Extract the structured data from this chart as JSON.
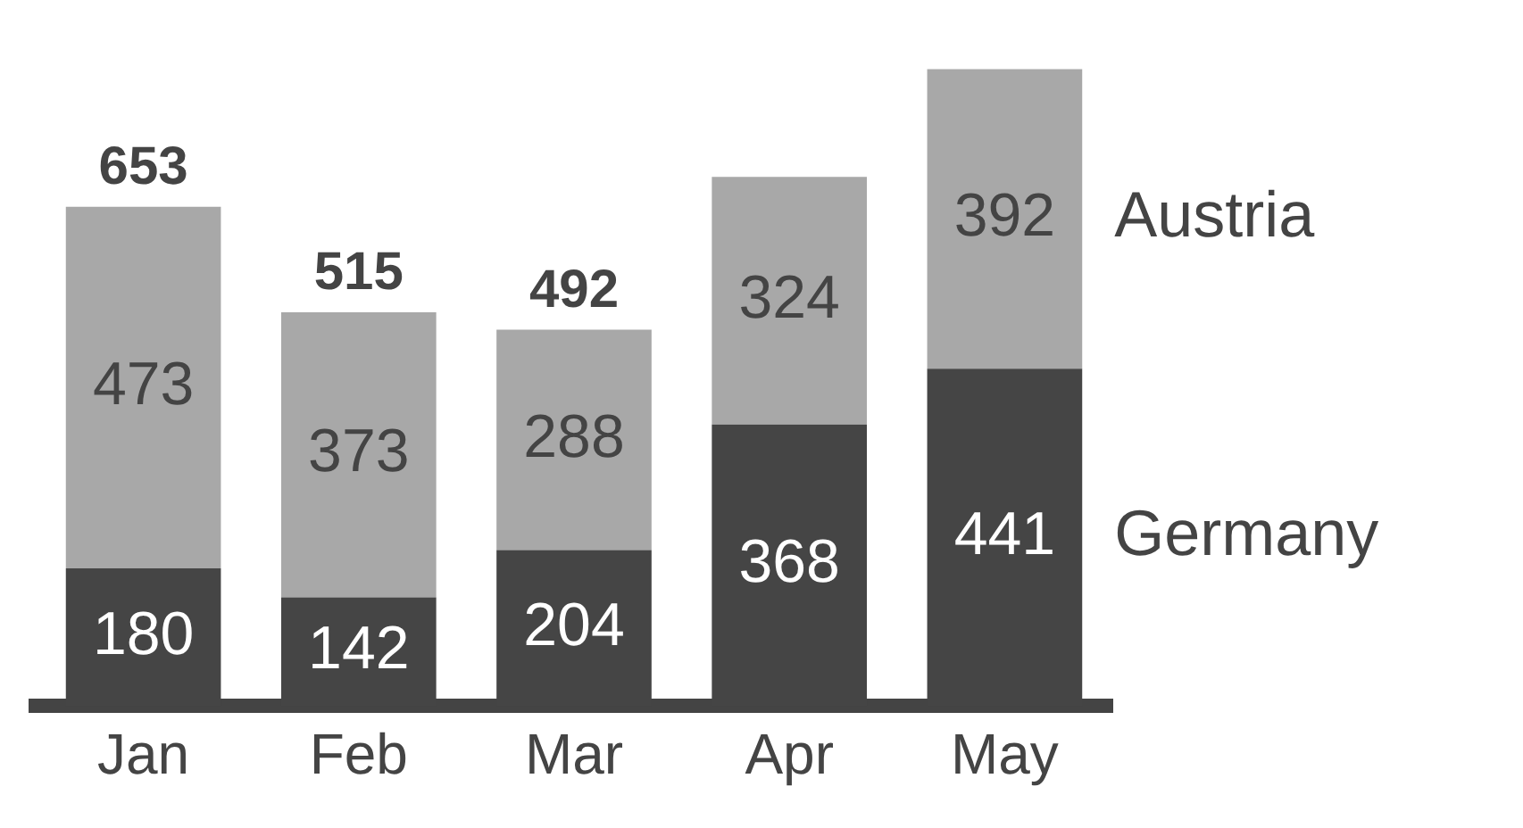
{
  "chart_data": {
    "type": "bar",
    "stacked": true,
    "categories": [
      "Jan",
      "Feb",
      "Mar",
      "Apr",
      "May"
    ],
    "series": [
      {
        "name": "Germany",
        "color": "#454545",
        "values": [
          180,
          142,
          204,
          368,
          441
        ]
      },
      {
        "name": "Austria",
        "color": "#a8a8a8",
        "values": [
          473,
          373,
          288,
          324,
          392
        ]
      }
    ],
    "data_labels": true,
    "totals": [
      "653",
      "515",
      "492",
      null,
      null
    ],
    "grid": false,
    "legend": false,
    "tick_labels": "x"
  }
}
